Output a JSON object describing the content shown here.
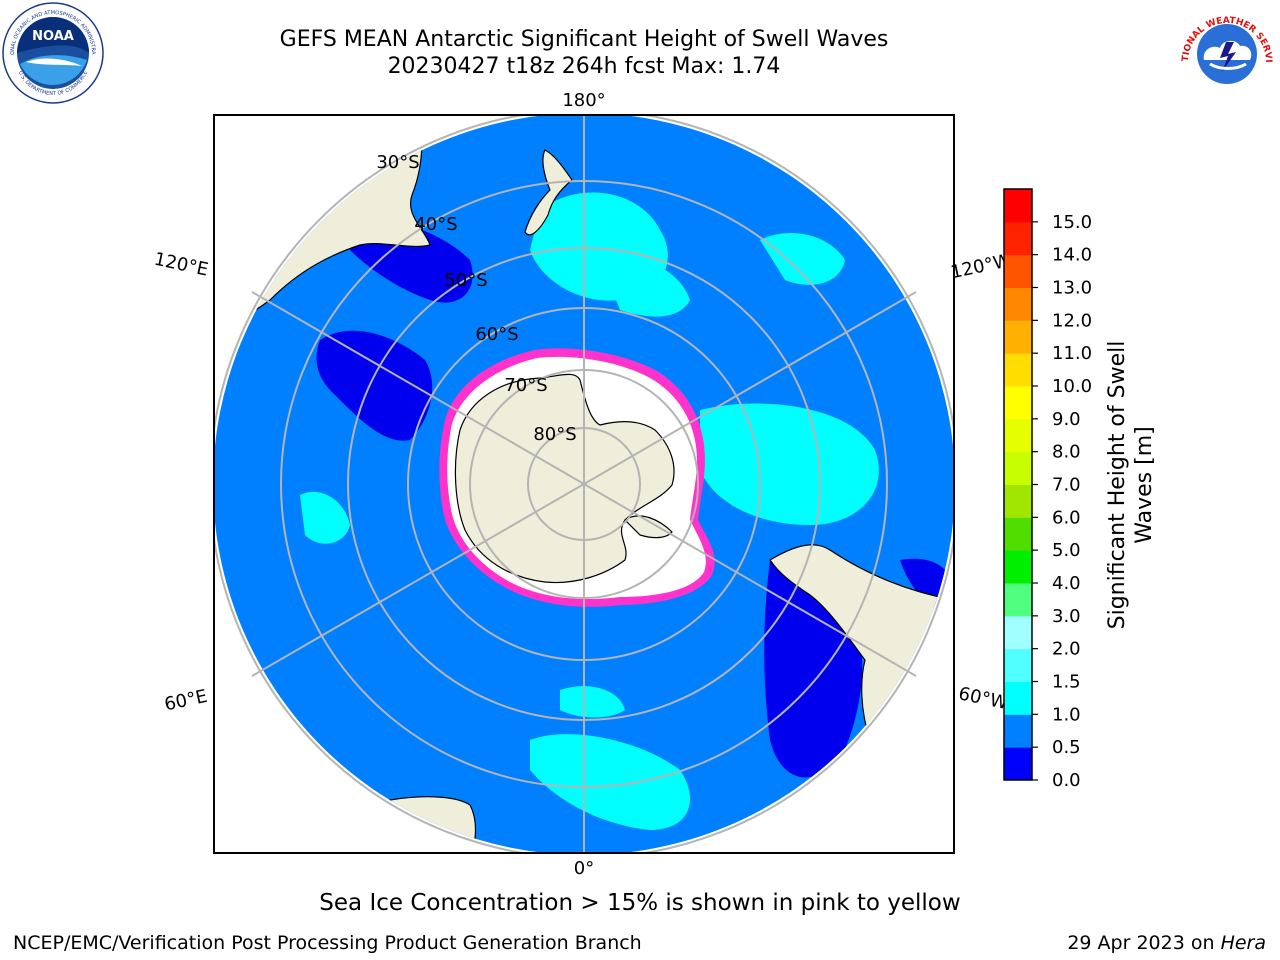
{
  "header": {
    "title_line1": "GEFS MEAN Antarctic Significant Height of Swell Waves",
    "title_line2": "20230427 t18z 264h fcst   Max: 1.74"
  },
  "map": {
    "projection": "south-polar-stereographic",
    "longitude_labels": {
      "top": "180°",
      "bottom": "0°",
      "upper_left": "120°E",
      "upper_right": "120°W",
      "lower_left": "60°E",
      "lower_right": "60°W"
    },
    "latitude_labels": [
      "30°S",
      "40°S",
      "50°S",
      "60°S",
      "70°S",
      "80°S"
    ],
    "colors": {
      "ocean": "#0080ff",
      "land": "#efeedb",
      "sea_ice": "#ffffff",
      "ice_edge": "#ff33cc",
      "calm": "#0000ee",
      "swell_1_5": "#00ffff",
      "grid": "#b4b4b4"
    }
  },
  "colorbar": {
    "label": "Significant Height of Swell Waves [m]",
    "label_line1": "Significant Height of Swell",
    "label_line2": "Waves [m]",
    "ticks": [
      "0.0",
      "0.5",
      "1.0",
      "1.5",
      "2.0",
      "3.0",
      "4.0",
      "5.0",
      "6.0",
      "7.0",
      "8.0",
      "9.0",
      "10.0",
      "11.0",
      "12.0",
      "13.0",
      "14.0",
      "15.0"
    ],
    "colors": [
      "#0000ff",
      "#0080ff",
      "#00ffff",
      "#50ffff",
      "#a0ffff",
      "#50ff80",
      "#00ee00",
      "#50dd00",
      "#a0e600",
      "#c8ff00",
      "#e6ff00",
      "#ffff00",
      "#ffdd00",
      "#ffb000",
      "#ff8800",
      "#ff5500",
      "#ff2200",
      "#ff0000"
    ]
  },
  "notes": {
    "sea_ice": "Sea Ice Concentration > 15% is shown in pink to yellow"
  },
  "footer": {
    "left": "NCEP/EMC/Verification Post Processing Product Generation Branch",
    "date": "29 Apr 2023 on",
    "machine": "Hera"
  },
  "logos": {
    "noaa_text": "NOAA",
    "noaa_ring_top": "NATIONAL OCEANIC AND ATMOSPHERIC ADMINISTRATION",
    "noaa_ring_bottom": "U.S. DEPARTMENT OF COMMERCE",
    "nws_ring": "NATIONAL WEATHER SERVICE"
  }
}
